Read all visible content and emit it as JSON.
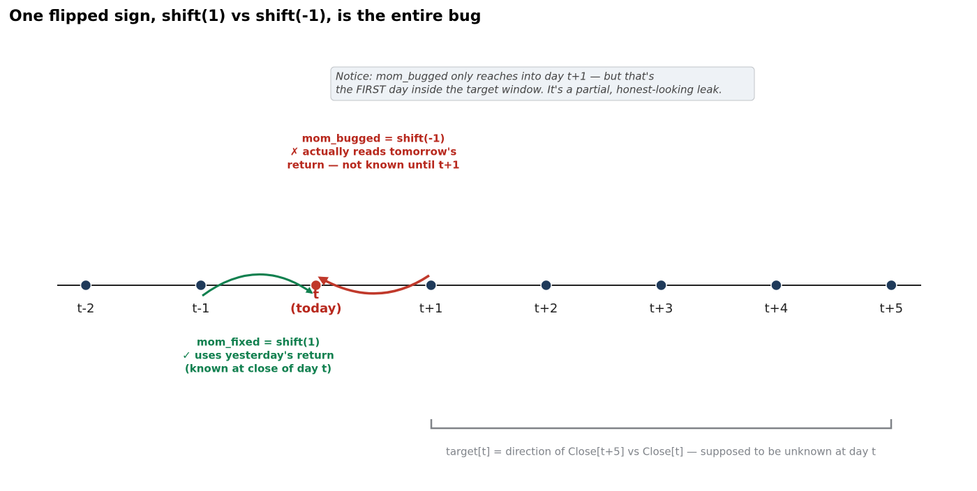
{
  "title": "One flipped sign, shift(1) vs shift(-1), is the entire bug",
  "notice": [
    "Notice: mom_bugged only reaches into day t+1 — but that's",
    "the FIRST day inside the target window. It's a partial, honest-looking leak."
  ],
  "nodes": [
    {
      "label": "t-2"
    },
    {
      "label": "t-1"
    },
    {
      "label": "t",
      "note": "(today)",
      "highlight": true
    },
    {
      "label": "t+1"
    },
    {
      "label": "t+2"
    },
    {
      "label": "t+3"
    },
    {
      "label": "t+4"
    },
    {
      "label": "t+5"
    }
  ],
  "bugged": [
    "mom_bugged = shift(-1)",
    "✗ actually reads tomorrow's",
    "return — not known until t+1"
  ],
  "fixed": [
    "mom_fixed = shift(1)",
    "✓ uses yesterday's return",
    "(known at close of day t)"
  ],
  "target_caption": "target[t] = direction of Close[t+5] vs Close[t] — supposed to be unknown at day t"
}
